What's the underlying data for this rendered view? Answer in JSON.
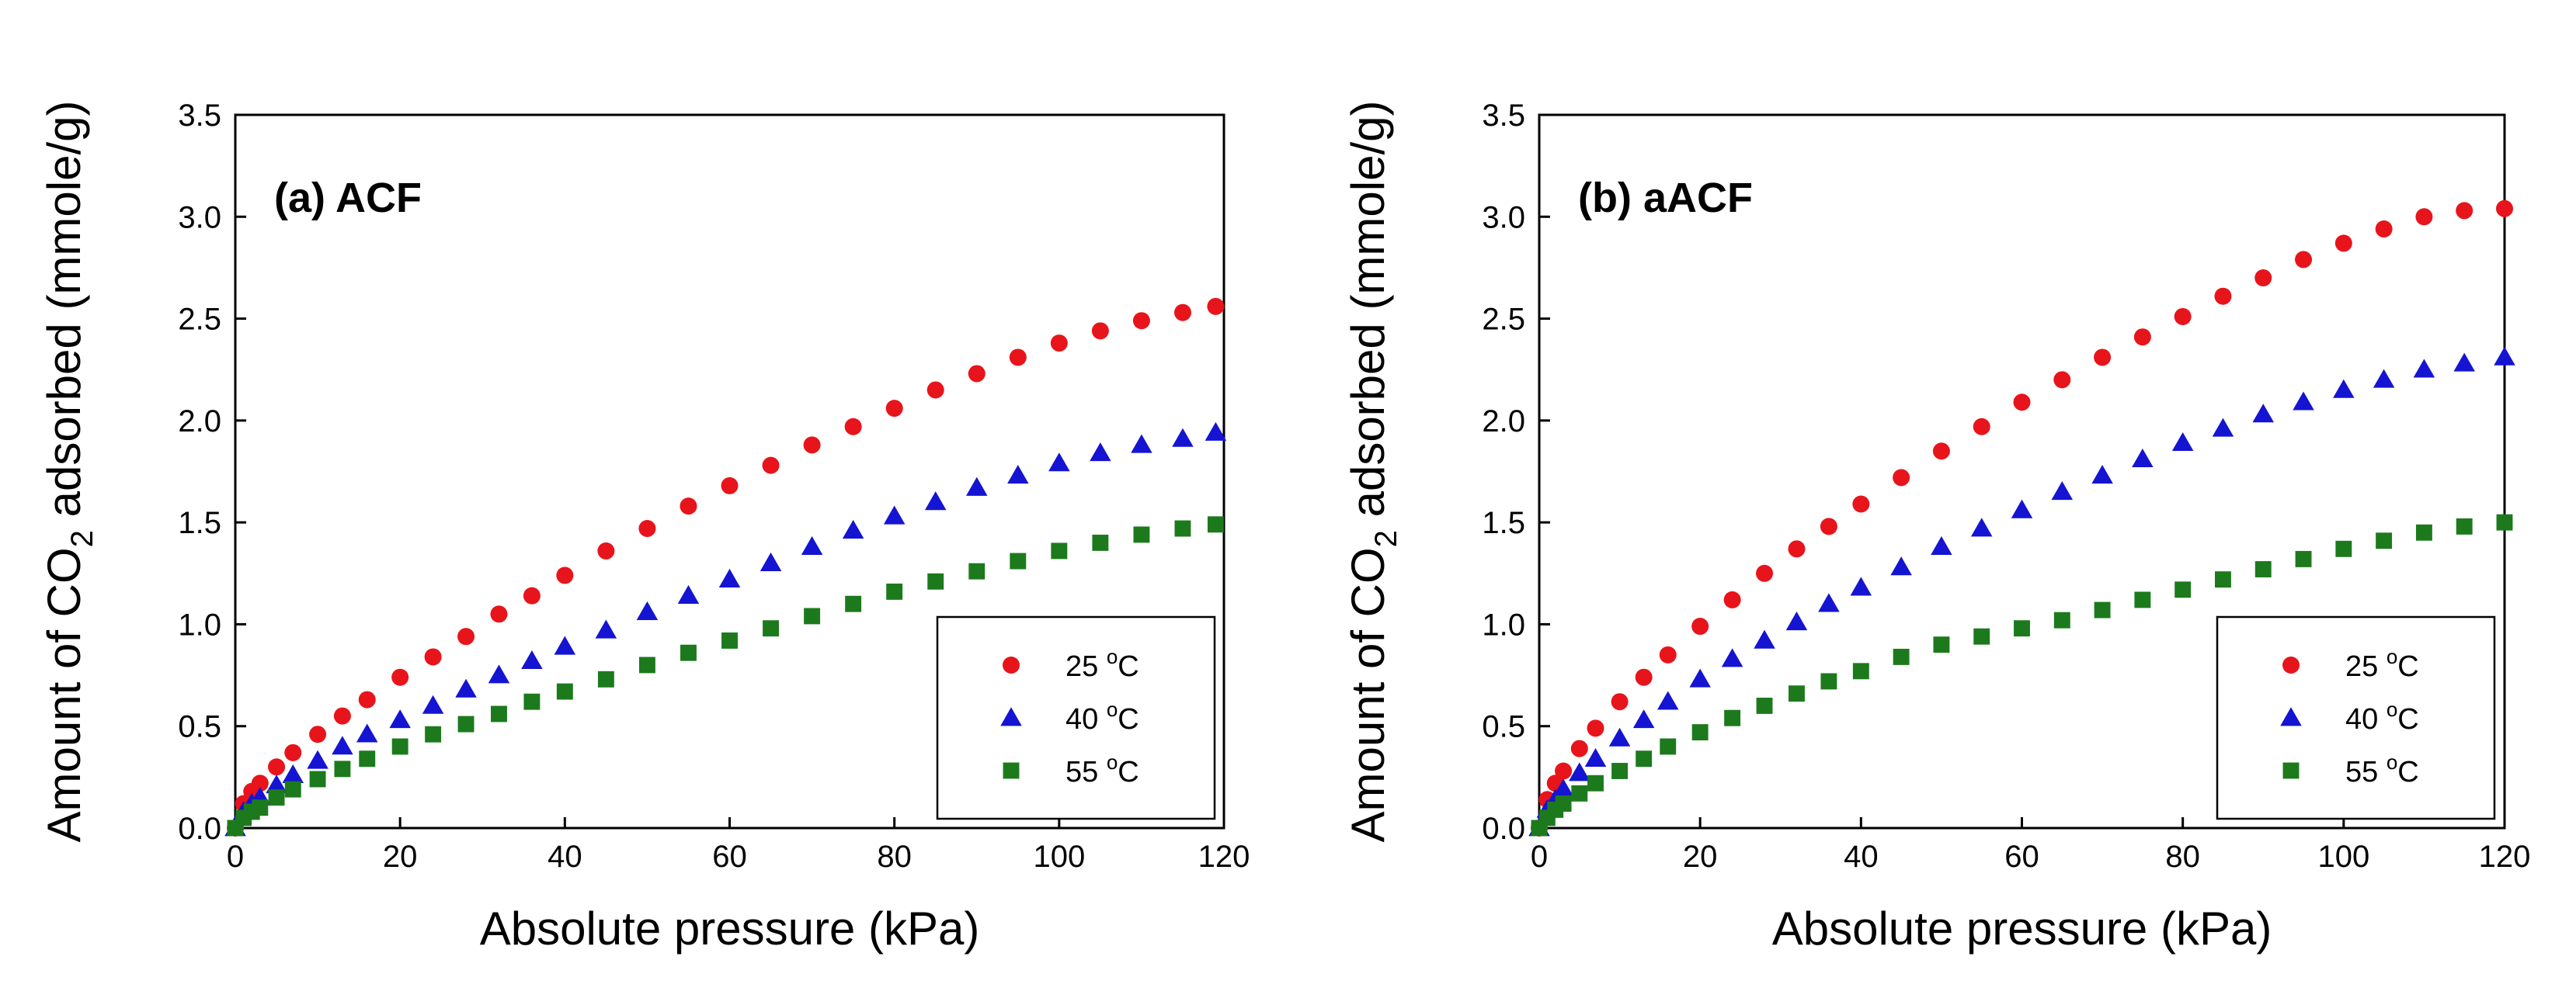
{
  "chart_data": [
    {
      "type": "scatter",
      "panel_label": "(a) ACF",
      "xlabel": "Absolute pressure (kPa)",
      "ylabel_prefix": "Amount of CO",
      "ylabel_subscript": "2",
      "ylabel_suffix": " adsorbed (mmole/g)",
      "xlim": [
        0,
        120
      ],
      "ylim": [
        0,
        3.5
      ],
      "xticks": [
        "0",
        "20",
        "40",
        "60",
        "80",
        "100",
        "120"
      ],
      "yticks": [
        "0.0",
        "0.5",
        "1.0",
        "1.5",
        "2.0",
        "2.5",
        "3.0",
        "3.5"
      ],
      "legend_position": "lower-right",
      "grid": false,
      "series": [
        {
          "name": "25",
          "unit": "C",
          "marker": "circle",
          "color": "#e8141b",
          "x": [
            0,
            1,
            2,
            3,
            5,
            7,
            10,
            13,
            16,
            20,
            24,
            28,
            32,
            36,
            40,
            45,
            50,
            55,
            60,
            65,
            70,
            75,
            80,
            85,
            90,
            95,
            100,
            105,
            110,
            115,
            119
          ],
          "y": [
            0.0,
            0.12,
            0.18,
            0.22,
            0.3,
            0.37,
            0.46,
            0.55,
            0.63,
            0.74,
            0.84,
            0.94,
            1.05,
            1.14,
            1.24,
            1.36,
            1.47,
            1.58,
            1.68,
            1.78,
            1.88,
            1.97,
            2.06,
            2.15,
            2.23,
            2.31,
            2.38,
            2.44,
            2.49,
            2.53,
            2.56
          ]
        },
        {
          "name": "40",
          "unit": "C",
          "marker": "triangle",
          "color": "#1414d2",
          "x": [
            0,
            1,
            2,
            3,
            5,
            7,
            10,
            13,
            16,
            20,
            24,
            28,
            32,
            36,
            40,
            45,
            50,
            55,
            60,
            65,
            70,
            75,
            80,
            85,
            90,
            95,
            100,
            105,
            110,
            115,
            119
          ],
          "y": [
            0.0,
            0.08,
            0.12,
            0.15,
            0.21,
            0.26,
            0.33,
            0.4,
            0.46,
            0.53,
            0.6,
            0.68,
            0.75,
            0.82,
            0.89,
            0.97,
            1.06,
            1.14,
            1.22,
            1.3,
            1.38,
            1.46,
            1.53,
            1.6,
            1.67,
            1.73,
            1.79,
            1.84,
            1.88,
            1.91,
            1.94
          ]
        },
        {
          "name": "55",
          "unit": "C",
          "marker": "square",
          "color": "#1c7a1c",
          "x": [
            0,
            1,
            2,
            3,
            5,
            7,
            10,
            13,
            16,
            20,
            24,
            28,
            32,
            36,
            40,
            45,
            50,
            55,
            60,
            65,
            70,
            75,
            80,
            85,
            90,
            95,
            100,
            105,
            110,
            115,
            119
          ],
          "y": [
            0.0,
            0.05,
            0.08,
            0.1,
            0.15,
            0.19,
            0.24,
            0.29,
            0.34,
            0.4,
            0.46,
            0.51,
            0.56,
            0.62,
            0.67,
            0.73,
            0.8,
            0.86,
            0.92,
            0.98,
            1.04,
            1.1,
            1.16,
            1.21,
            1.26,
            1.31,
            1.36,
            1.4,
            1.44,
            1.47,
            1.49
          ]
        }
      ]
    },
    {
      "type": "scatter",
      "panel_label": "(b) aACF",
      "xlabel": "Absolute pressure (kPa)",
      "ylabel_prefix": "Amount of CO",
      "ylabel_subscript": "2",
      "ylabel_suffix": " adsorbed (mmole/g)",
      "xlim": [
        0,
        120
      ],
      "ylim": [
        0,
        3.5
      ],
      "xticks": [
        "0",
        "20",
        "40",
        "60",
        "80",
        "100",
        "120"
      ],
      "yticks": [
        "0.0",
        "0.5",
        "1.0",
        "1.5",
        "2.0",
        "2.5",
        "3.0",
        "3.5"
      ],
      "legend_position": "lower-right",
      "grid": false,
      "series": [
        {
          "name": "25",
          "unit": "C",
          "marker": "circle",
          "color": "#e8141b",
          "x": [
            0,
            1,
            2,
            3,
            5,
            7,
            10,
            13,
            16,
            20,
            24,
            28,
            32,
            36,
            40,
            45,
            50,
            55,
            60,
            65,
            70,
            75,
            80,
            85,
            90,
            95,
            100,
            105,
            110,
            115,
            120
          ],
          "y": [
            0.0,
            0.14,
            0.22,
            0.28,
            0.39,
            0.49,
            0.62,
            0.74,
            0.85,
            0.99,
            1.12,
            1.25,
            1.37,
            1.48,
            1.59,
            1.72,
            1.85,
            1.97,
            2.09,
            2.2,
            2.31,
            2.41,
            2.51,
            2.61,
            2.7,
            2.79,
            2.87,
            2.94,
            3.0,
            3.03,
            3.04
          ]
        },
        {
          "name": "40",
          "unit": "C",
          "marker": "triangle",
          "color": "#1414d2",
          "x": [
            0,
            1,
            2,
            3,
            5,
            7,
            10,
            13,
            16,
            20,
            24,
            28,
            32,
            36,
            40,
            45,
            50,
            55,
            60,
            65,
            70,
            75,
            80,
            85,
            90,
            95,
            100,
            105,
            110,
            115,
            120
          ],
          "y": [
            0.0,
            0.09,
            0.14,
            0.19,
            0.27,
            0.34,
            0.44,
            0.53,
            0.62,
            0.73,
            0.83,
            0.92,
            1.01,
            1.1,
            1.18,
            1.28,
            1.38,
            1.47,
            1.56,
            1.65,
            1.73,
            1.81,
            1.89,
            1.96,
            2.03,
            2.09,
            2.15,
            2.2,
            2.25,
            2.28,
            2.31
          ]
        },
        {
          "name": "55",
          "unit": "C",
          "marker": "square",
          "color": "#1c7a1c",
          "x": [
            0,
            1,
            2,
            3,
            5,
            7,
            10,
            13,
            16,
            20,
            24,
            28,
            32,
            36,
            40,
            45,
            50,
            55,
            60,
            65,
            70,
            75,
            80,
            85,
            90,
            95,
            100,
            105,
            110,
            115,
            120
          ],
          "y": [
            0.0,
            0.05,
            0.09,
            0.12,
            0.17,
            0.22,
            0.28,
            0.34,
            0.4,
            0.47,
            0.54,
            0.6,
            0.66,
            0.72,
            0.77,
            0.84,
            0.9,
            0.94,
            0.98,
            1.02,
            1.07,
            1.12,
            1.17,
            1.22,
            1.27,
            1.32,
            1.37,
            1.41,
            1.45,
            1.48,
            1.5
          ]
        }
      ]
    }
  ]
}
